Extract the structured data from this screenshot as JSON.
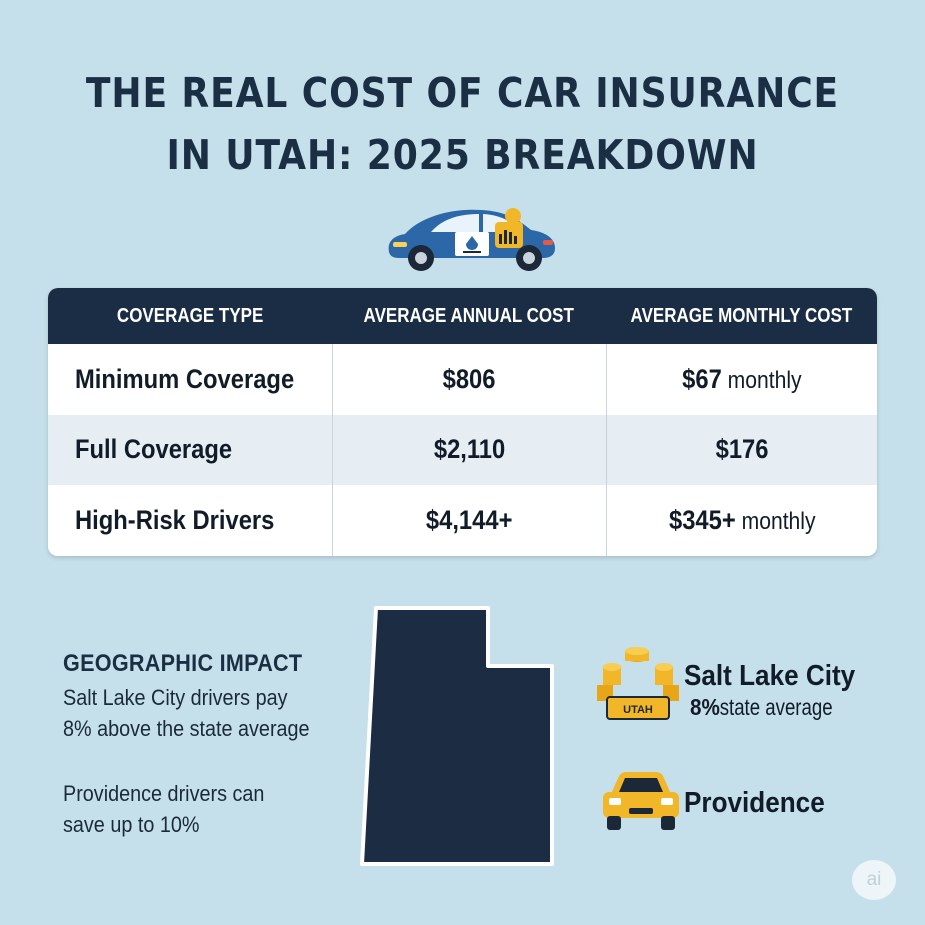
{
  "title": {
    "line1": "THE REAL COST OF CAR INSURANCE",
    "line2": "IN UTAH: 2025 BREAKDOWN"
  },
  "table": {
    "headers": [
      "COVERAGE TYPE",
      "AVERAGE ANNUAL COST",
      "AVERAGE MONTHLY COST"
    ],
    "rows": [
      {
        "type": "Minimum Coverage",
        "annual": "$806",
        "monthly": "$67",
        "monthly_suffix": " monthly"
      },
      {
        "type": "Full Coverage",
        "annual": "$2,110",
        "monthly": "$176",
        "monthly_suffix": ""
      },
      {
        "type": "High-Risk Drivers",
        "annual": "$4,144+",
        "monthly": "$345+",
        "monthly_suffix": " monthly"
      }
    ]
  },
  "geographic": {
    "heading": "GEOGRAPHIC IMPACT",
    "p1_line1": "Salt Lake City drivers pay",
    "p1_line2": "8% above the state average",
    "p2_line1": "Providence drivers can",
    "p2_line2": "save up to 10%"
  },
  "cities": {
    "slc_name": "Salt Lake City",
    "slc_pct": "8%",
    "slc_rest": " state average",
    "slc_plate": "UTAH",
    "prov_name": "Providence"
  },
  "badge": "ai",
  "colors": {
    "background": "#c5e0ea",
    "header_bg": "#1b2d44",
    "map": "#1c2c42",
    "gold": "#f2b728"
  },
  "icons": {
    "hero": "car-with-insurance-icon",
    "slc": "coins-utah-plate-icon",
    "providence": "yellow-car-icon"
  }
}
